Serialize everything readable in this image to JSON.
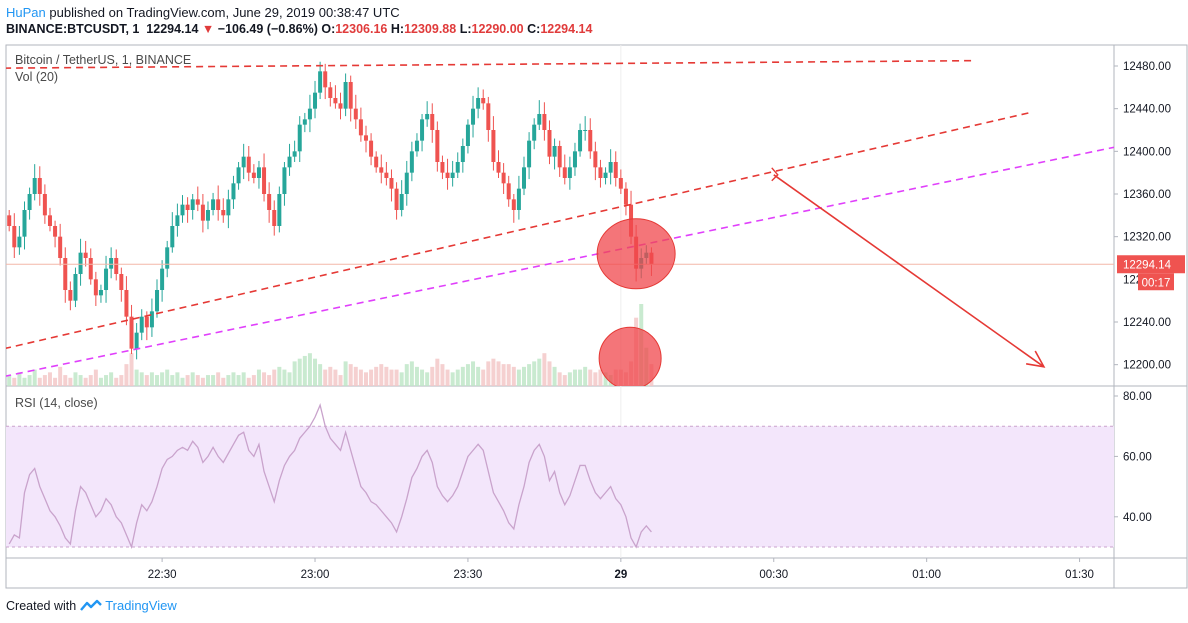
{
  "header": {
    "author": "HuPan",
    "published": "published on TradingView.com, June 29, 2019 00:38:47 UTC",
    "symbol": "BINANCE:BTCUSDT, 1",
    "last": "12294.14",
    "change": "−106.49 (−0.86%)",
    "open_label": "O:",
    "open": "12306.16",
    "high_label": "H:",
    "high": "12309.88",
    "low_label": "L:",
    "low": "12290.00",
    "close_label": "C:",
    "close": "12294.14"
  },
  "legend": {
    "instrument": "Bitcoin / TetherUS, 1, BINANCE",
    "volume": "Vol (20)",
    "rsi": "RSI (14, close)"
  },
  "price_badge": {
    "value": "12294.14",
    "countdown": "00:17"
  },
  "footer": {
    "created_with": "Created with",
    "brand": "TradingView"
  },
  "colors": {
    "up": "#26a69a",
    "down": "#ef5350",
    "trend_red": "#e53935",
    "trend_magenta": "#e040fb",
    "rsi_line": "#c9a3cc",
    "rsi_band": "#f3e6fb",
    "arrow": "#e53935",
    "highlight": "#f0474c",
    "last_price": "#ef5350"
  },
  "chart_data": {
    "type": "candlestick",
    "price_axis": {
      "min": 12180,
      "max": 12500,
      "ticks": [
        12200,
        12240,
        12320,
        12360,
        12400,
        12440,
        12480
      ]
    },
    "rsi_axis": {
      "min": 28,
      "max": 82,
      "ticks": [
        40,
        60,
        80
      ],
      "band": [
        30,
        70
      ]
    },
    "time_ticks": [
      {
        "label": "22:30",
        "t": "22:30"
      },
      {
        "label": "23:00",
        "t": "23:00"
      },
      {
        "label": "23:30",
        "t": "23:30"
      },
      {
        "label": "29",
        "t": "00:00"
      },
      {
        "label": "00:30",
        "t": "00:30"
      },
      {
        "label": "01:00",
        "t": "01:00"
      },
      {
        "label": "01:30",
        "t": "01:30"
      }
    ],
    "first_bar_time": "22:00",
    "close": [
      12330,
      12310,
      12320,
      12345,
      12360,
      12375,
      12360,
      12340,
      12330,
      12320,
      12300,
      12270,
      12260,
      12285,
      12305,
      12300,
      12280,
      12265,
      12270,
      12290,
      12300,
      12285,
      12270,
      12245,
      12215,
      12230,
      12245,
      12235,
      12250,
      12270,
      12290,
      12310,
      12330,
      12340,
      12350,
      12345,
      12355,
      12350,
      12335,
      12345,
      12355,
      12345,
      12340,
      12355,
      12370,
      12385,
      12395,
      12380,
      12375,
      12385,
      12360,
      12345,
      12330,
      12360,
      12385,
      12395,
      12400,
      12425,
      12430,
      12440,
      12455,
      12475,
      12460,
      12450,
      12445,
      12440,
      12465,
      12440,
      12430,
      12415,
      12410,
      12395,
      12385,
      12380,
      12375,
      12365,
      12345,
      12360,
      12380,
      12400,
      12410,
      12430,
      12435,
      12420,
      12390,
      12380,
      12375,
      12380,
      12390,
      12405,
      12425,
      12440,
      12450,
      12445,
      12420,
      12390,
      12380,
      12370,
      12355,
      12345,
      12365,
      12385,
      12410,
      12425,
      12435,
      12420,
      12395,
      12405,
      12385,
      12375,
      12385,
      12400,
      12420,
      12420,
      12400,
      12385,
      12375,
      12380,
      12390,
      12375,
      12365,
      12350,
      12320,
      12290,
      12300,
      12305,
      12294.14
    ],
    "volume": [
      4,
      3,
      5,
      3,
      4,
      6,
      3,
      4,
      5,
      3,
      7,
      4,
      3,
      5,
      4,
      3,
      4,
      6,
      3,
      4,
      5,
      3,
      4,
      8,
      12,
      6,
      5,
      4,
      5,
      4,
      5,
      6,
      4,
      5,
      3,
      4,
      5,
      4,
      3,
      4,
      4,
      5,
      3,
      4,
      5,
      4,
      5,
      3,
      4,
      6,
      5,
      4,
      6,
      7,
      6,
      5,
      9,
      10,
      11,
      12,
      10,
      8,
      6,
      7,
      6,
      4,
      9,
      8,
      7,
      6,
      5,
      6,
      7,
      8,
      7,
      6,
      6,
      5,
      8,
      9,
      7,
      6,
      5,
      7,
      10,
      8,
      6,
      5,
      6,
      7,
      8,
      9,
      7,
      6,
      9,
      10,
      9,
      8,
      8,
      7,
      6,
      7,
      8,
      9,
      10,
      12,
      9,
      7,
      5,
      4,
      5,
      6,
      6,
      7,
      6,
      5,
      6,
      5,
      4,
      6,
      6,
      5,
      9,
      25,
      30,
      14,
      8
    ],
    "rsi": [
      31,
      34,
      33,
      48,
      54,
      56,
      50,
      46,
      42,
      40,
      37,
      33,
      31,
      42,
      50,
      48,
      44,
      40,
      42,
      46,
      44,
      40,
      38,
      34,
      30,
      38,
      44,
      42,
      45,
      50,
      56,
      59,
      60,
      62,
      63,
      62,
      65,
      63,
      58,
      60,
      63,
      60,
      58,
      61,
      64,
      67,
      68,
      62,
      60,
      64,
      55,
      50,
      45,
      52,
      57,
      60,
      62,
      66,
      68,
      70,
      73,
      77,
      70,
      66,
      64,
      62,
      68,
      62,
      56,
      50,
      48,
      45,
      44,
      42,
      40,
      38,
      35,
      40,
      46,
      53,
      56,
      60,
      62,
      58,
      50,
      47,
      45,
      47,
      50,
      55,
      60,
      62,
      64,
      62,
      55,
      48,
      45,
      42,
      38,
      36,
      44,
      50,
      58,
      62,
      64,
      60,
      52,
      55,
      48,
      44,
      47,
      52,
      57,
      57,
      52,
      48,
      46,
      48,
      50,
      46,
      44,
      40,
      33,
      30,
      35,
      37,
      35
    ],
    "trendlines": [
      {
        "color": "red",
        "points": [
          [
            "21:59",
            12478
          ],
          [
            "01:09",
            12485
          ]
        ]
      },
      {
        "color": "red",
        "points": [
          [
            "21:59",
            12215
          ],
          [
            "01:20",
            12436
          ]
        ]
      },
      {
        "color": "magenta",
        "points": [
          [
            "21:59",
            12189
          ],
          [
            "01:38",
            12405
          ]
        ]
      }
    ],
    "arrow": {
      "from": [
        "00:30",
        12378
      ],
      "to": [
        "01:23",
        12198
      ]
    }
  }
}
